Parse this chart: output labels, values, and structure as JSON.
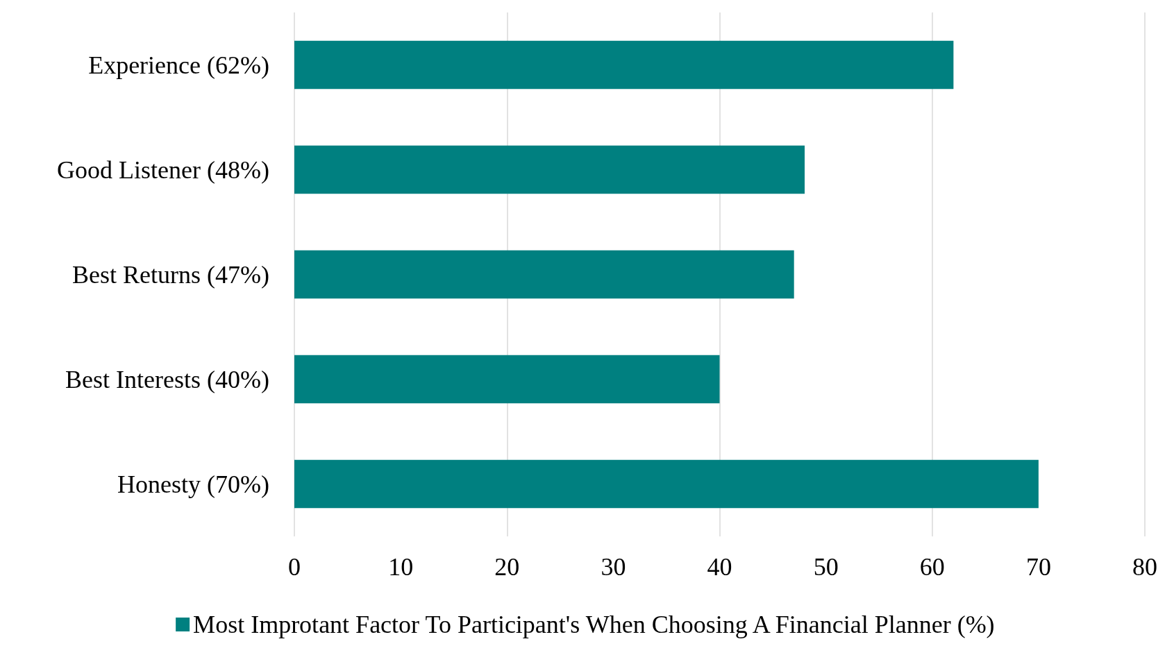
{
  "chart_data": {
    "type": "bar",
    "orientation": "horizontal",
    "categories": [
      "Experience (62%)",
      "Good Listener (48%)",
      "Best Returns (47%)",
      "Best Interests (40%)",
      "Honesty (70%)"
    ],
    "series": [
      {
        "name": "Most Improtant Factor To Participant's When Choosing A Financial Planner (%)",
        "color": "#008080",
        "values": [
          62,
          48,
          47,
          40,
          70
        ]
      }
    ],
    "xlim": [
      0,
      80
    ],
    "xticks": [
      0,
      10,
      20,
      30,
      40,
      50,
      60,
      70,
      80
    ],
    "grid": "x",
    "legend": "bottom"
  }
}
